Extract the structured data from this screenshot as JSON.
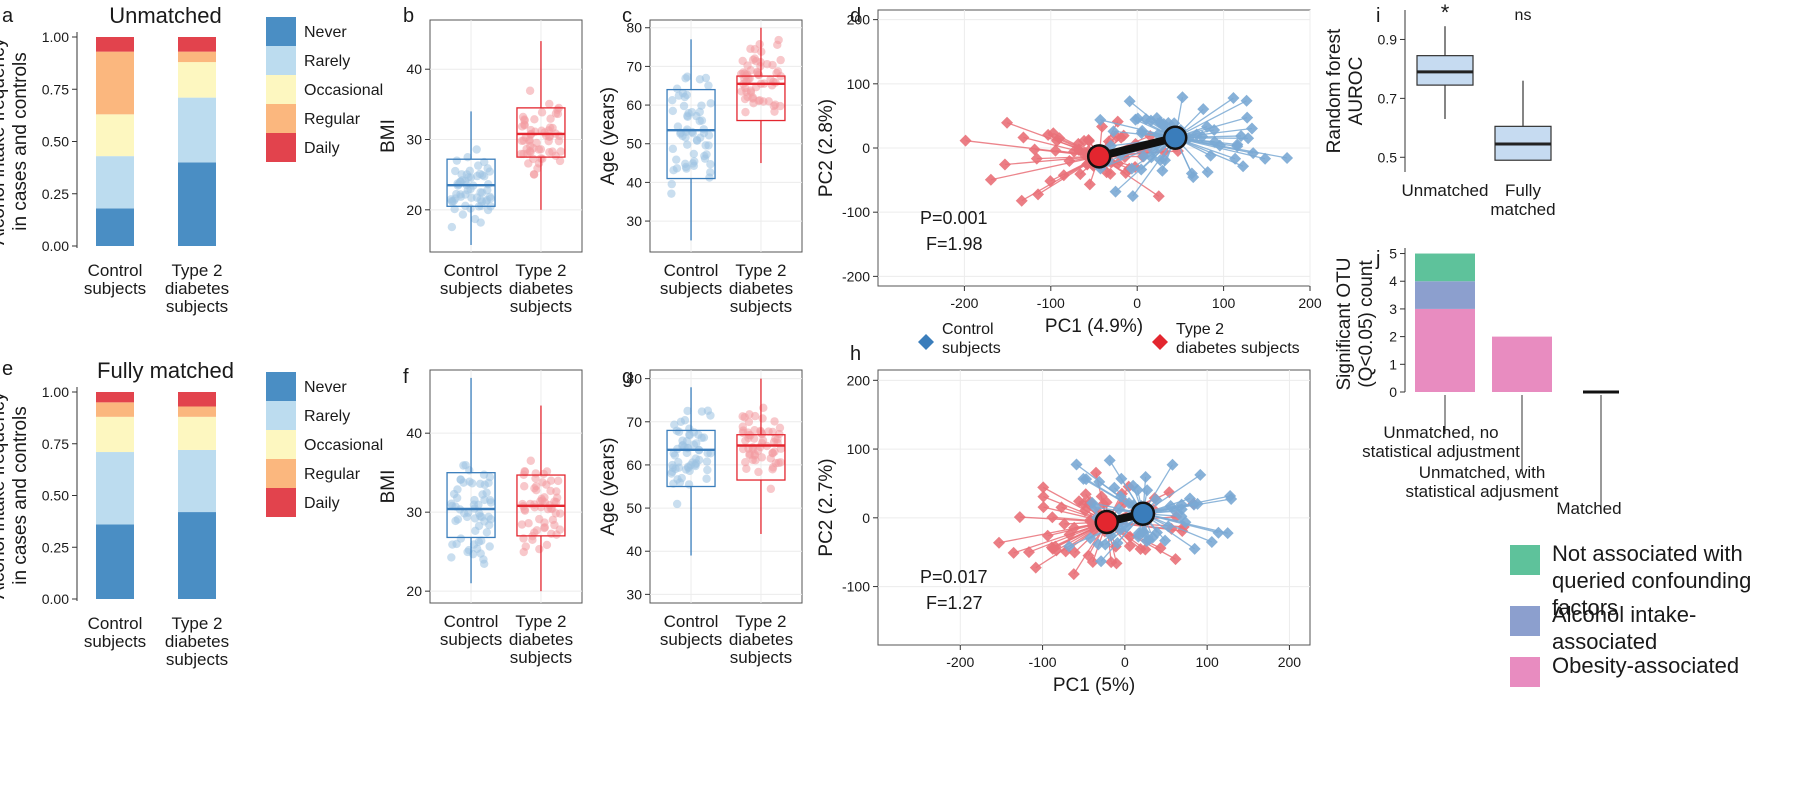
{
  "legend_alcohol": [
    "Never",
    "Rarely",
    "Occasional",
    "Regular",
    "Daily"
  ],
  "legend_groups": {
    "control": [
      "Control",
      "subjects"
    ],
    "t2d": [
      "Type 2",
      "diabetes subjects"
    ]
  },
  "legend_otu": [
    {
      "lines": [
        "Not associated with",
        "queried confounding",
        "factors"
      ],
      "color": "#5ec29b"
    },
    {
      "lines": [
        "Alcohol intake-",
        "associated"
      ],
      "color": "#8c9fce"
    },
    {
      "lines": [
        "Obesity-associated"
      ],
      "color": "#e88cc0"
    }
  ],
  "colors": {
    "never": "#4a8ec4",
    "rarely": "#bcdcef",
    "occasional": "#fdf7c0",
    "regular": "#fbb77e",
    "daily": "#e2434d",
    "control": "#3a7dbb",
    "t2d": "#e3262f",
    "control_light": "#9dc3e2",
    "t2d_light": "#f29aa0",
    "rf_box": "#c6dbf1"
  },
  "chart_data": [
    {
      "panel": "a",
      "type": "bar",
      "stacked": true,
      "title": "Unmatched",
      "ylabel": [
        "Alcohol intake frequency",
        "in cases and controls"
      ],
      "categories": [
        [
          "Control",
          "subjects"
        ],
        [
          "Type 2",
          "diabetes",
          "subjects"
        ]
      ],
      "yticks": [
        "0.00",
        "0.25",
        "0.50",
        "0.75",
        "1.00"
      ],
      "ylim": [
        0,
        1
      ],
      "series": [
        {
          "name": "Never",
          "values": [
            0.18,
            0.4
          ]
        },
        {
          "name": "Rarely",
          "values": [
            0.25,
            0.31
          ]
        },
        {
          "name": "Occasional",
          "values": [
            0.2,
            0.17
          ]
        },
        {
          "name": "Regular",
          "values": [
            0.3,
            0.05
          ]
        },
        {
          "name": "Daily",
          "values": [
            0.07,
            0.07
          ]
        }
      ]
    },
    {
      "panel": "e",
      "type": "bar",
      "stacked": true,
      "title": "Fully matched",
      "ylabel": [
        "Alcohol intake frequency",
        "in cases and controls"
      ],
      "categories": [
        [
          "Control",
          "subjects"
        ],
        [
          "Type 2",
          "diabetes",
          "subjects"
        ]
      ],
      "yticks": [
        "0.00",
        "0.25",
        "0.50",
        "0.75",
        "1.00"
      ],
      "ylim": [
        0,
        1
      ],
      "series": [
        {
          "name": "Never",
          "values": [
            0.36,
            0.42
          ]
        },
        {
          "name": "Rarely",
          "values": [
            0.35,
            0.3
          ]
        },
        {
          "name": "Occasional",
          "values": [
            0.17,
            0.16
          ]
        },
        {
          "name": "Regular",
          "values": [
            0.07,
            0.05
          ]
        },
        {
          "name": "Daily",
          "values": [
            0.05,
            0.07
          ]
        }
      ]
    },
    {
      "panel": "b",
      "type": "box",
      "ylabel": "BMI",
      "ylim": [
        14,
        47
      ],
      "yticks": [
        20,
        30,
        40
      ],
      "categories": [
        [
          "Control",
          "subjects"
        ],
        [
          "Type 2",
          "diabetes",
          "subjects"
        ]
      ],
      "boxes": [
        {
          "min": 15,
          "q1": 20.5,
          "median": 23.5,
          "q3": 27.2,
          "max": 34
        },
        {
          "min": 20,
          "q1": 27.5,
          "median": 30.8,
          "q3": 34.5,
          "max": 44
        }
      ]
    },
    {
      "panel": "f",
      "type": "box",
      "ylabel": "BMI",
      "ylim": [
        18.5,
        48
      ],
      "yticks": [
        20,
        30,
        40
      ],
      "categories": [
        [
          "Control",
          "subjects"
        ],
        [
          "Type 2",
          "diabetes",
          "subjects"
        ]
      ],
      "boxes": [
        {
          "min": 21,
          "q1": 26.8,
          "median": 30.4,
          "q3": 35,
          "max": 47
        },
        {
          "min": 20,
          "q1": 27,
          "median": 30.8,
          "q3": 34.7,
          "max": 43.5
        }
      ]
    },
    {
      "panel": "c",
      "type": "box",
      "ylabel": "Age (years)",
      "ylim": [
        22,
        82
      ],
      "yticks": [
        30,
        40,
        50,
        60,
        70,
        80
      ],
      "categories": [
        [
          "Control",
          "subjects"
        ],
        [
          "Type 2",
          "diabetes",
          "subjects"
        ]
      ],
      "boxes": [
        {
          "min": 25,
          "q1": 41,
          "median": 53.5,
          "q3": 64,
          "max": 77
        },
        {
          "min": 45,
          "q1": 56,
          "median": 65.5,
          "q3": 67.5,
          "max": 80
        }
      ]
    },
    {
      "panel": "g",
      "type": "box",
      "ylabel": "Age (years)",
      "ylim": [
        28,
        82
      ],
      "yticks": [
        30,
        40,
        50,
        60,
        70,
        80
      ],
      "categories": [
        [
          "Control",
          "subjects"
        ],
        [
          "Type 2",
          "diabetes",
          "subjects"
        ]
      ],
      "boxes": [
        {
          "min": 39,
          "q1": 55,
          "median": 63.5,
          "q3": 68,
          "max": 78
        },
        {
          "min": 44,
          "q1": 56.5,
          "median": 64.5,
          "q3": 67,
          "max": 80
        }
      ]
    },
    {
      "panel": "d",
      "type": "scatter",
      "xlabel": "PC1 (4.9%)",
      "ylabel": "PC2 (2.8%)",
      "xlim": [
        -300,
        200
      ],
      "ylim": [
        -215,
        215
      ],
      "xticks": [
        -200,
        -100,
        0,
        100,
        200
      ],
      "yticks": [
        -200,
        -100,
        0,
        100,
        200
      ],
      "stats": [
        "P=0.001",
        "F=1.98"
      ],
      "centroids": {
        "control": [
          44,
          16
        ],
        "t2d": [
          -44,
          -13
        ]
      }
    },
    {
      "panel": "h",
      "type": "scatter",
      "xlabel": "PC1 (5%)",
      "ylabel": "PC2 (2.7%)",
      "xlim": [
        -300,
        225
      ],
      "ylim": [
        -185,
        215
      ],
      "xticks": [
        -200,
        -100,
        0,
        100,
        200
      ],
      "yticks": [
        -100,
        0,
        100,
        200
      ],
      "stats": [
        "P=0.017",
        "F=1.27"
      ],
      "centroids": {
        "control": [
          22,
          6
        ],
        "t2d": [
          -22,
          -6
        ]
      }
    },
    {
      "panel": "i",
      "type": "box",
      "ylabel": [
        "Random forest",
        "AUROC"
      ],
      "categories": [
        [
          "Unmatched"
        ],
        [
          "Fully",
          "matched"
        ]
      ],
      "ylim": [
        0.45,
        1.0
      ],
      "yticks": [
        "0.5",
        "0.7",
        "0.9"
      ],
      "boxes": [
        {
          "min": 0.63,
          "q1": 0.745,
          "median": 0.79,
          "q3": 0.845,
          "max": 0.945,
          "sig": "*"
        },
        {
          "min": 0.49,
          "q1": 0.49,
          "median": 0.545,
          "q3": 0.605,
          "max": 0.76,
          "sig": "ns"
        }
      ]
    },
    {
      "panel": "j",
      "type": "bar",
      "stacked": true,
      "ylabel": [
        "Significant OTU",
        "(Q<0.05) count"
      ],
      "ylim": [
        0,
        5.2
      ],
      "yticks": [
        "0",
        "1",
        "2",
        "3",
        "4",
        "5"
      ],
      "categories": [
        [
          "Unmatched, no",
          "statistical adjustment"
        ],
        [
          "Unmatched, with",
          "statistical adjusment"
        ],
        [
          "Matched"
        ]
      ],
      "series": [
        {
          "name": "Obesity-associated",
          "values": [
            3,
            2,
            0
          ]
        },
        {
          "name": "Alcohol intake-associated",
          "values": [
            1,
            0,
            0
          ]
        },
        {
          "name": "Not associated with queried confounding factors",
          "values": [
            1,
            0,
            0
          ]
        }
      ]
    }
  ]
}
